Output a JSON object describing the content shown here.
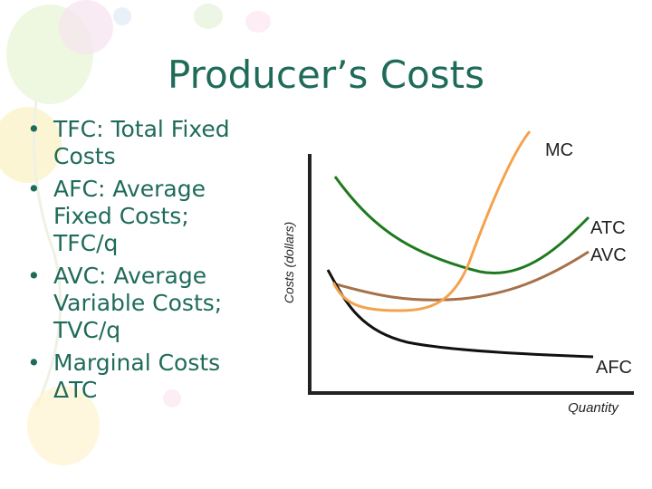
{
  "slide": {
    "title": "Producer’s Costs",
    "bullets": [
      {
        "line1": "TFC: Total Fixed",
        "line2": "Costs"
      },
      {
        "line1": "AFC: Average",
        "line2": "Fixed Costs;",
        "line3": "TFC/q"
      },
      {
        "line1": "AVC: Average",
        "line2": "Variable Costs;",
        "line3": "TVC/q"
      },
      {
        "line1": "Marginal Costs",
        "line2": "ΔTC"
      }
    ]
  },
  "diagram": {
    "y_axis_label": "Costs (dollars)",
    "x_axis_label": "Quantity",
    "curves": {
      "mc": {
        "label": "MC",
        "color": "#f4a24c"
      },
      "atc": {
        "label": "ATC",
        "color": "#1e7a1e"
      },
      "avc": {
        "label": "AVC",
        "color": "#a6714a"
      },
      "afc": {
        "label": "AFC",
        "color": "#111111"
      }
    }
  }
}
